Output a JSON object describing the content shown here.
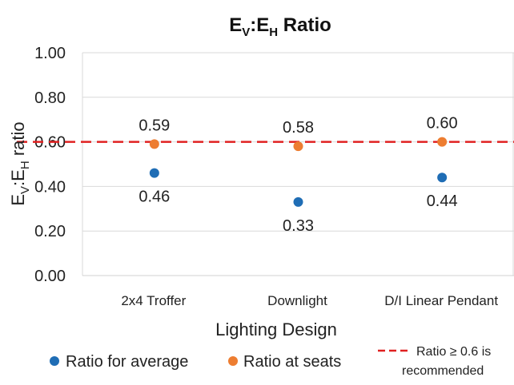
{
  "chart_data": {
    "type": "scatter",
    "title": "E:E Ratio",
    "title_parts": {
      "main1": "E",
      "sub1": "V",
      "colon": ":",
      "main2": "E",
      "sub2": "H",
      "rest": " Ratio"
    },
    "xlabel": "Lighting Design",
    "ylabel_parts": {
      "main1": "E",
      "sub1": "V",
      "colon": ":",
      "main2": "E",
      "sub2": "H",
      "rest": " ratio"
    },
    "categories": [
      "2x4 Troffer",
      "Downlight",
      "D/I Linear Pendant"
    ],
    "ylim": [
      0,
      1.0
    ],
    "yticks": [
      "0.00",
      "0.20",
      "0.40",
      "0.60",
      "0.80",
      "1.00"
    ],
    "grid": true,
    "series": [
      {
        "name": "Ratio for average",
        "color": "#1f6db5",
        "values": [
          0.46,
          0.33,
          0.44
        ],
        "labels": [
          "0.46",
          "0.33",
          "0.44"
        ]
      },
      {
        "name": "Ratio at seats",
        "color": "#ed7d31",
        "values": [
          0.59,
          0.58,
          0.6
        ],
        "labels": [
          "0.59",
          "0.58",
          "0.60"
        ]
      }
    ],
    "reference_line": {
      "value": 0.6,
      "color": "#e02020",
      "legend_line1": "Ratio ≥ 0.6 is",
      "legend_line2": "recommended"
    },
    "legend_placement": "bottom"
  }
}
